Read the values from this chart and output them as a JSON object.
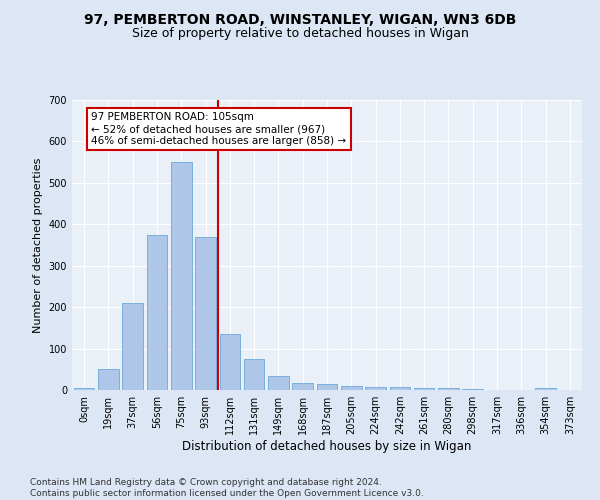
{
  "title1": "97, PEMBERTON ROAD, WINSTANLEY, WIGAN, WN3 6DB",
  "title2": "Size of property relative to detached houses in Wigan",
  "xlabel": "Distribution of detached houses by size in Wigan",
  "ylabel": "Number of detached properties",
  "bar_labels": [
    "0sqm",
    "19sqm",
    "37sqm",
    "56sqm",
    "75sqm",
    "93sqm",
    "112sqm",
    "131sqm",
    "149sqm",
    "168sqm",
    "187sqm",
    "205sqm",
    "224sqm",
    "242sqm",
    "261sqm",
    "280sqm",
    "298sqm",
    "317sqm",
    "336sqm",
    "354sqm",
    "373sqm"
  ],
  "bar_values": [
    5,
    50,
    210,
    375,
    550,
    370,
    135,
    75,
    33,
    18,
    15,
    10,
    8,
    7,
    5,
    4,
    2,
    1,
    0,
    4,
    1
  ],
  "bar_color": "#aec6e8",
  "bar_edge_color": "#5a9fd4",
  "vline_x": 5.5,
  "vline_color": "#cc0000",
  "annotation_lines": [
    "97 PEMBERTON ROAD: 105sqm",
    "← 52% of detached houses are smaller (967)",
    "46% of semi-detached houses are larger (858) →"
  ],
  "annotation_box_color": "#ffffff",
  "annotation_box_edge_color": "#cc0000",
  "ylim": [
    0,
    700
  ],
  "yticks": [
    0,
    100,
    200,
    300,
    400,
    500,
    600,
    700
  ],
  "bg_color": "#dce6f5",
  "plot_bg_color": "#eaf0f8",
  "footer": "Contains HM Land Registry data © Crown copyright and database right 2024.\nContains public sector information licensed under the Open Government Licence v3.0.",
  "title1_fontsize": 10,
  "title2_fontsize": 9,
  "xlabel_fontsize": 8.5,
  "ylabel_fontsize": 8,
  "tick_fontsize": 7,
  "annotation_fontsize": 7.5,
  "footer_fontsize": 6.5
}
